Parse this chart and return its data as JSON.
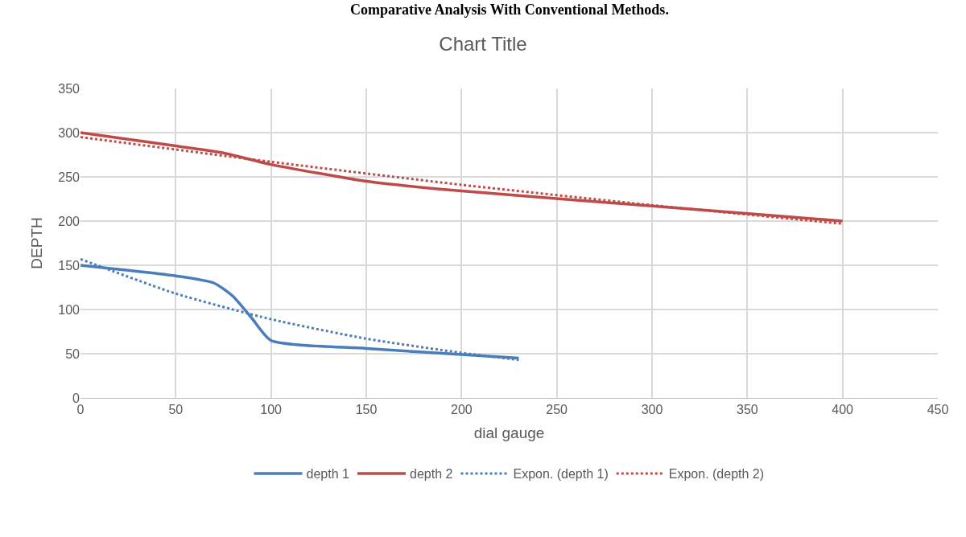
{
  "chart_data": {
    "type": "line",
    "title": "Chart Title",
    "xlabel": "dial gauge",
    "ylabel": "DEPTH",
    "annotations": [
      "Comparative Analysis With Conventional Methods."
    ],
    "series": [
      {
        "name": "depth 1",
        "color": "#4a7ebb",
        "line_style": "solid",
        "x": [
          0,
          50,
          70,
          80,
          90,
          100,
          150,
          200,
          230
        ],
        "values": [
          150,
          138,
          130,
          115,
          90,
          65,
          56,
          49,
          45
        ]
      },
      {
        "name": "depth 2",
        "color": "#be4b48",
        "line_style": "solid",
        "x": [
          0,
          50,
          75,
          100,
          150,
          200,
          300,
          400
        ],
        "values": [
          300,
          285,
          277,
          264,
          245,
          234,
          217,
          200
        ]
      },
      {
        "name": "Expon. (depth 1)",
        "color": "#4a7ebb",
        "line_style": "dotted",
        "x": [
          0,
          50,
          100,
          150,
          200,
          230
        ],
        "values": [
          157,
          118,
          89,
          67,
          51,
          43
        ]
      },
      {
        "name": "Expon. (depth 2)",
        "color": "#be4b48",
        "line_style": "dotted",
        "x": [
          0,
          100,
          200,
          300,
          400
        ],
        "values": [
          295,
          267,
          241,
          218,
          197
        ]
      }
    ],
    "xlim": [
      0,
      450
    ],
    "xticks": [
      0,
      50,
      100,
      150,
      200,
      250,
      300,
      350,
      400,
      450
    ],
    "ylim": [
      0,
      350
    ],
    "yticks": [
      0,
      50,
      100,
      150,
      200,
      250,
      300,
      350
    ],
    "grid": true,
    "legend": "bottom",
    "marker": "none"
  }
}
